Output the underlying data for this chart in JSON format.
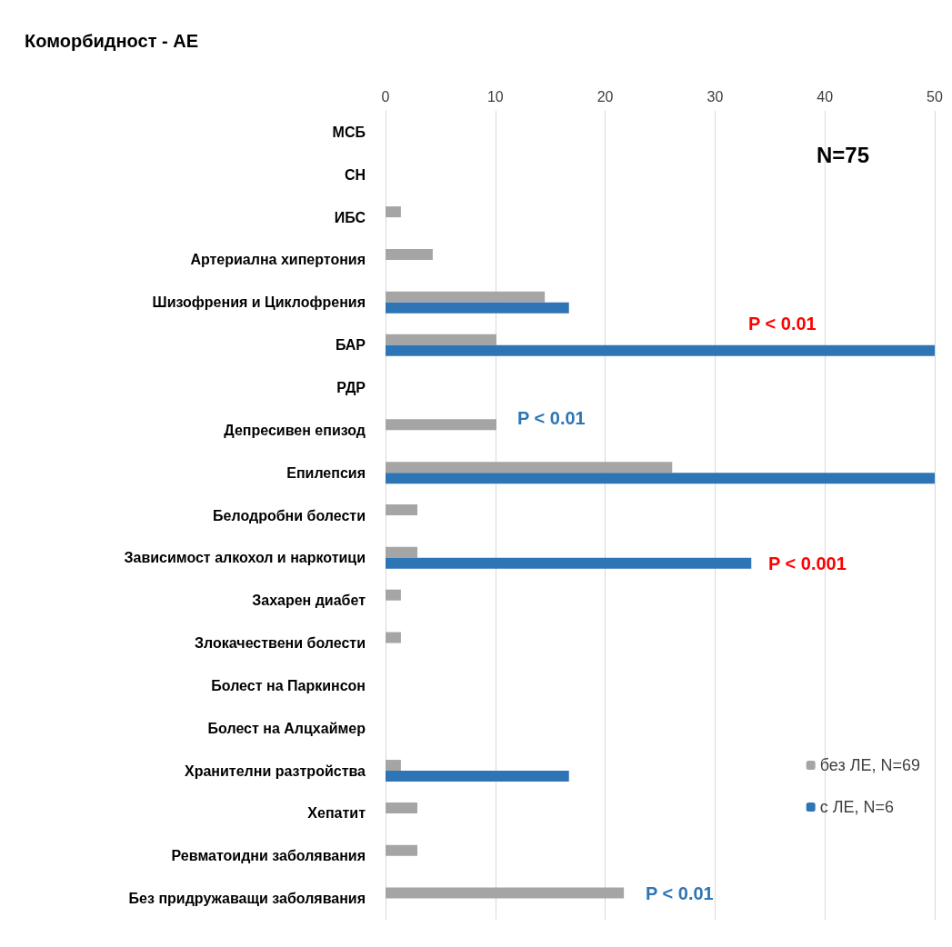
{
  "chart_data": {
    "type": "bar",
    "orientation": "horizontal",
    "title": "Коморбидност - АЕ",
    "categories": [
      "МСБ",
      "СН",
      "ИБС",
      "Артериална хипертония",
      "Шизофрения и Циклофрения",
      "БАР",
      "РДР",
      "Депресивен епизод",
      "Епилепсия",
      "Белодробни болести",
      "Зависимост алкохол и наркотици",
      "Захарен диабет",
      "Злокачествени болести",
      "Болест на Паркинсон",
      "Болест на Алцхаймер",
      "Хранителни разтройства",
      "Хепатит",
      "Ревматоидни заболявания",
      "Без придружаващи заболявания"
    ],
    "series": [
      {
        "name": "без ЛЕ, N=69",
        "color": "#a5a5a5",
        "values": [
          null,
          null,
          1.4,
          4.3,
          14.5,
          10.1,
          null,
          10.1,
          26.1,
          2.9,
          2.9,
          1.4,
          1.4,
          null,
          null,
          1.4,
          2.9,
          2.9,
          21.7
        ]
      },
      {
        "name": "с ЛЕ, N=6",
        "color": "#2e75b6",
        "values": [
          null,
          null,
          null,
          null,
          16.7,
          50,
          null,
          null,
          50,
          null,
          33.3,
          null,
          null,
          null,
          null,
          16.7,
          null,
          null,
          null
        ]
      }
    ],
    "xlim": [
      0,
      50
    ],
    "xticks": [
      0,
      10,
      20,
      30,
      40,
      50
    ],
    "grid": "x",
    "legend": "bottom right",
    "annotations": [
      "N=75",
      "P < 0.01",
      "P < 0.01",
      "P < 0.001",
      "P < 0.01"
    ]
  }
}
